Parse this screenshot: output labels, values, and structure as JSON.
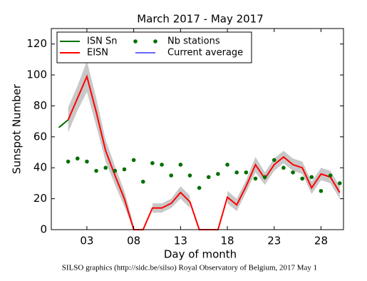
{
  "chart_data": {
    "type": "line",
    "title": "March 2017 - May 2017",
    "x_label": "Day of month",
    "y_label": "Sunspot Number",
    "footer": "SILSO graphics (http://sidc.be/silso) Royal Observatory of Belgium, 2017 May 1",
    "x": [
      0,
      1,
      2,
      3,
      4,
      5,
      6,
      7,
      8,
      9,
      10,
      11,
      12,
      13,
      14,
      15,
      16,
      17,
      18,
      19,
      20,
      21,
      22,
      23,
      24,
      25,
      26,
      27,
      28,
      29,
      30
    ],
    "xlim": [
      -0.8,
      30.4
    ],
    "xticks": [
      {
        "value": 3,
        "label": "03"
      },
      {
        "value": 8,
        "label": "08"
      },
      13,
      18,
      23,
      28
    ],
    "ylim": [
      0,
      130
    ],
    "yticks": [
      0,
      20,
      40,
      60,
      80,
      100,
      120
    ],
    "band_color": "#c8c8c8",
    "series": [
      {
        "name": "ISN Sn",
        "color": "#007000",
        "style": "line",
        "values": [
          66,
          71,
          null,
          null,
          null,
          null,
          null,
          null,
          null,
          null,
          null,
          null,
          null,
          null,
          null,
          null,
          null,
          null,
          null,
          null,
          null,
          null,
          null,
          null,
          null,
          null,
          null,
          null,
          null,
          null,
          null
        ]
      },
      {
        "name": "EISN",
        "color": "#ff0000",
        "style": "line",
        "values": [
          null,
          71,
          85,
          99,
          76,
          51,
          35,
          20,
          0,
          0,
          14,
          14,
          17,
          24,
          18,
          0,
          0,
          0,
          21,
          16,
          28,
          42,
          33,
          42,
          47,
          42,
          40,
          27,
          36,
          34,
          24
        ],
        "error": [
          null,
          8,
          8,
          10,
          9,
          7,
          6,
          5,
          3,
          0,
          3,
          3,
          3,
          4,
          4,
          0,
          0,
          0,
          4,
          4,
          4,
          5,
          4,
          4,
          4,
          4,
          4,
          4,
          4,
          4,
          4
        ]
      },
      {
        "name": "Nb stations",
        "color": "#007000",
        "style": "dots",
        "values": [
          null,
          44,
          46,
          44,
          38,
          40,
          38,
          39,
          45,
          31,
          43,
          42,
          35,
          42,
          35,
          27,
          34,
          36,
          42,
          37,
          37,
          33,
          34,
          45,
          40,
          37,
          33,
          34,
          25,
          35,
          30
        ]
      },
      {
        "name": "Current average",
        "color": "#6666ff",
        "style": "line",
        "values": [
          null,
          null,
          null,
          null,
          null,
          null,
          null,
          null,
          null,
          null,
          null,
          null,
          null,
          null,
          null,
          null,
          null,
          null,
          null,
          null,
          null,
          null,
          null,
          null,
          null,
          null,
          null,
          null,
          null,
          null,
          null
        ]
      }
    ]
  }
}
